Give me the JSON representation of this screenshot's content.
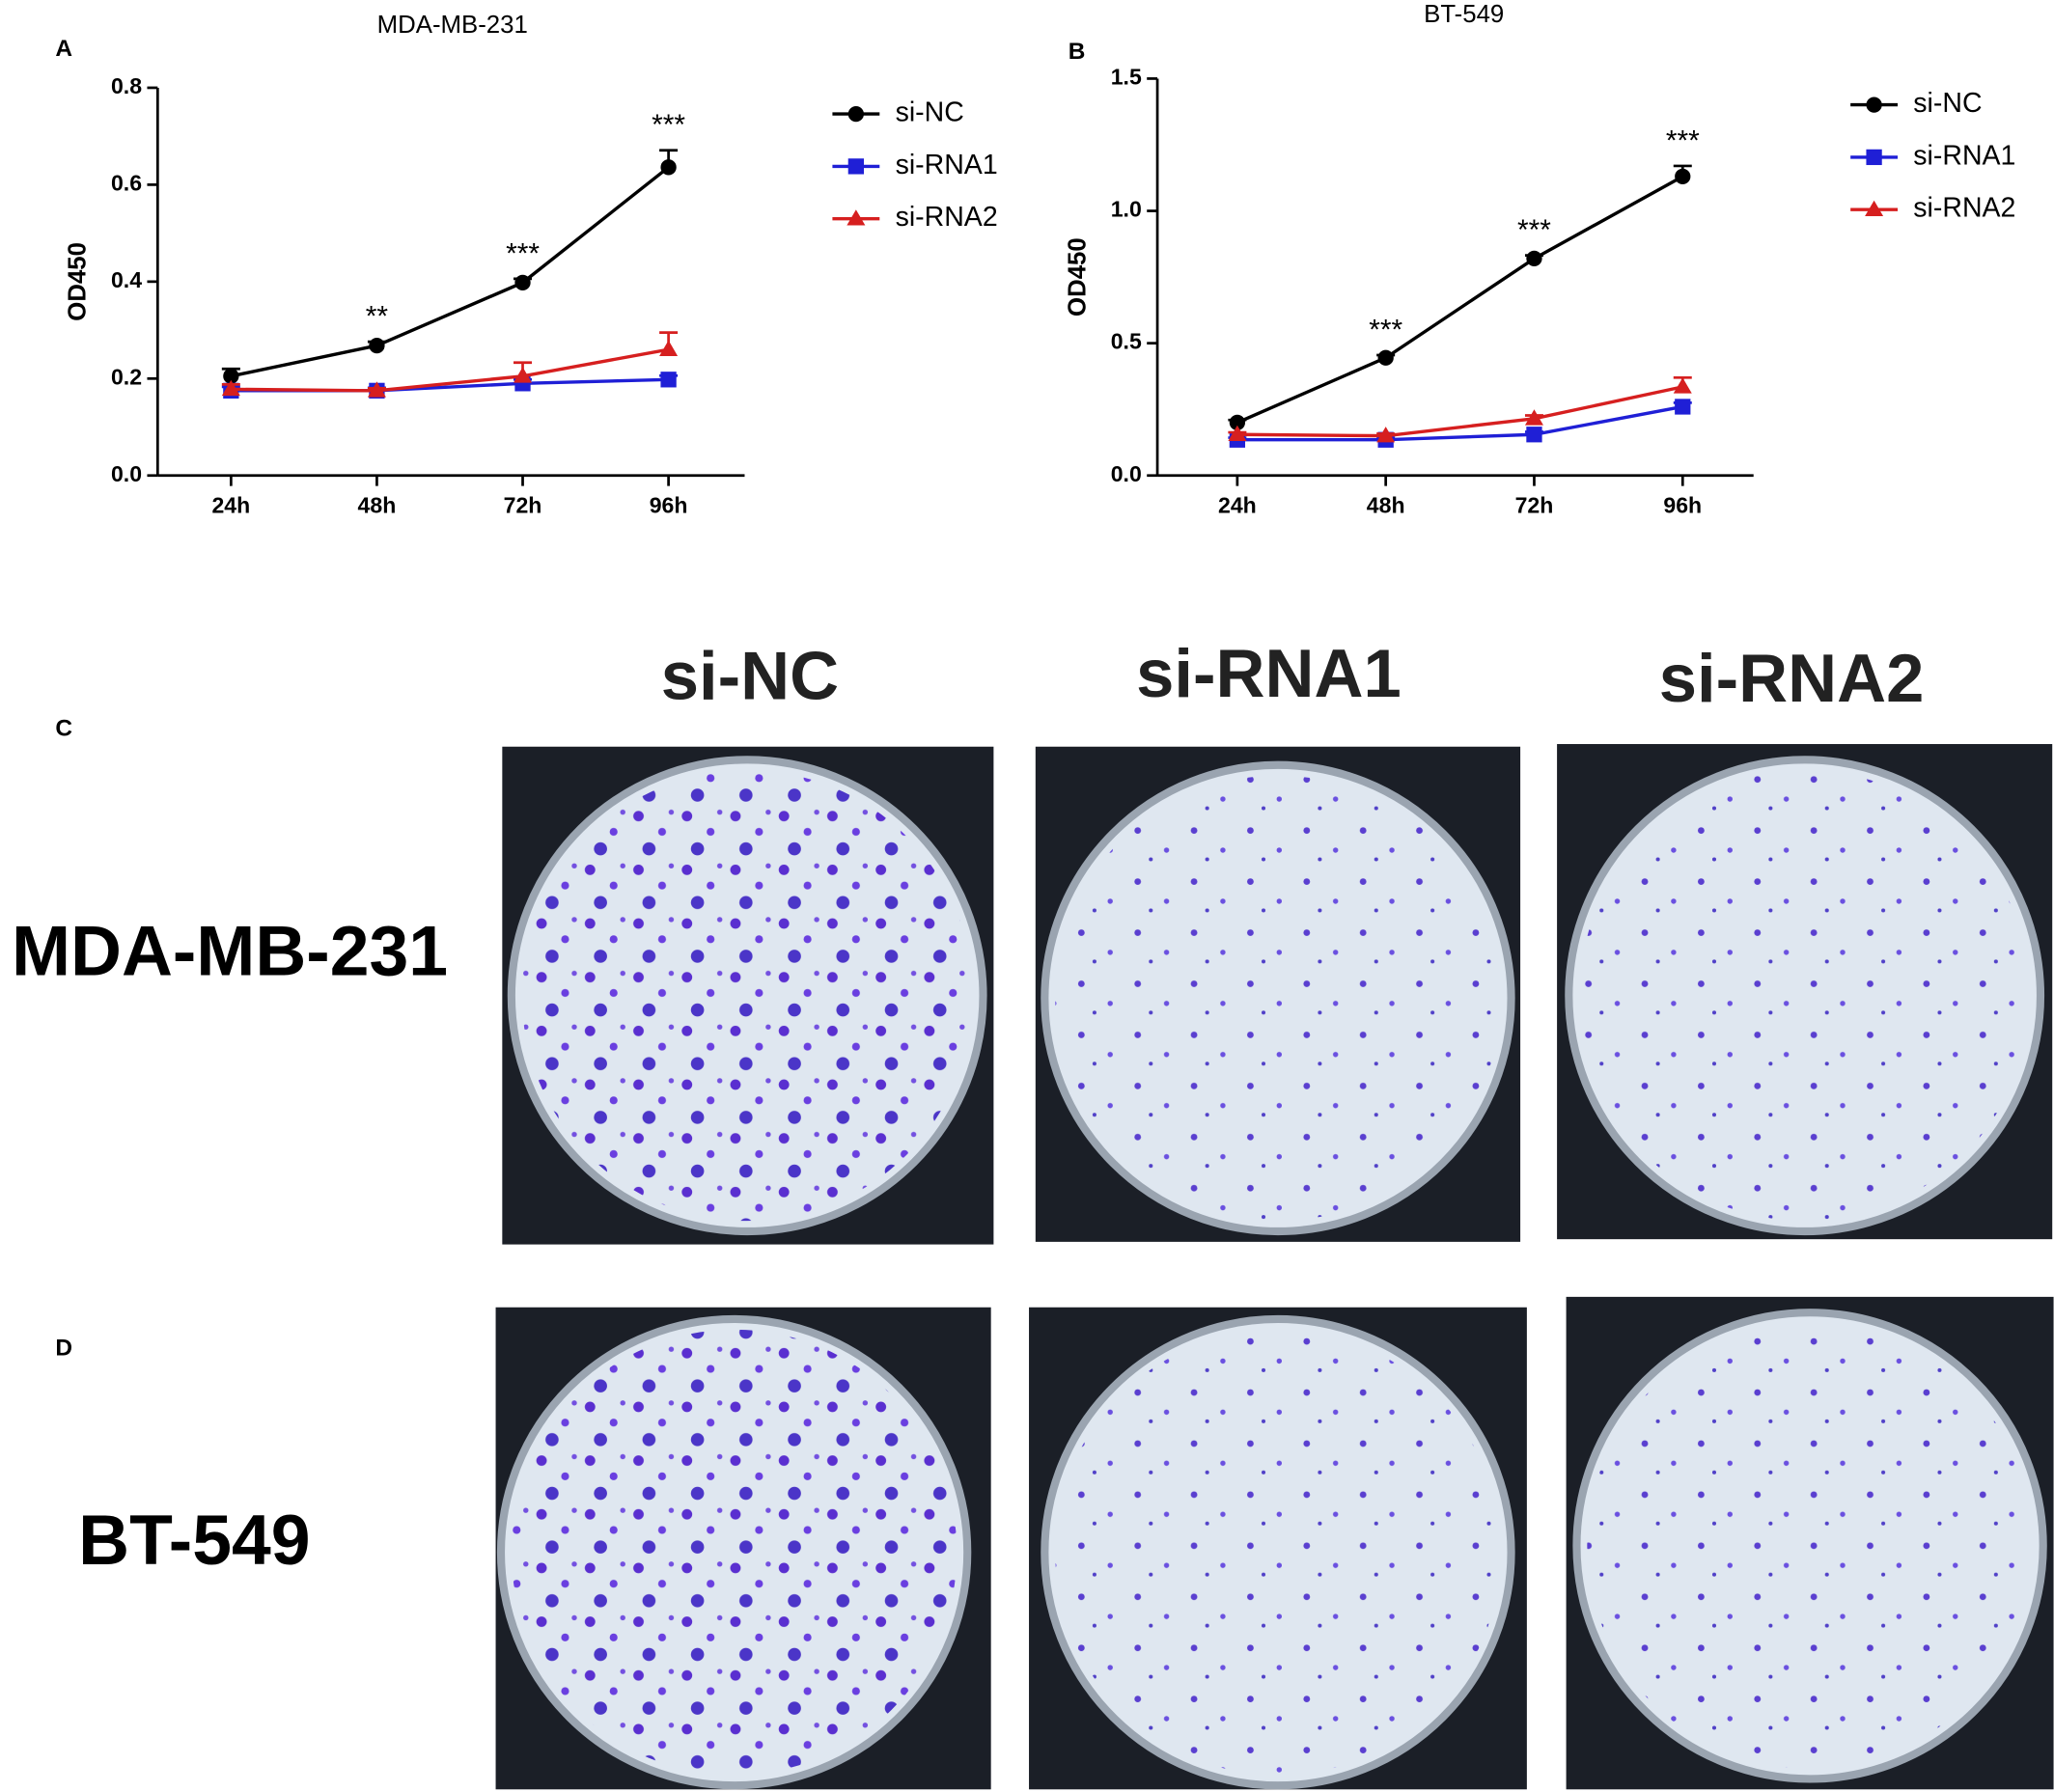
{
  "chart_data": [
    {
      "type": "line",
      "title": "MDA-MB-231",
      "y_label": "OD450",
      "legend": "right",
      "categories": [
        "24h",
        "48h",
        "72h",
        "96h"
      ],
      "ylim": [
        0,
        0.8
      ],
      "yticks": [
        {
          "value": 0,
          "label": "0.0"
        },
        0.2,
        0.4,
        0.6,
        0.8
      ],
      "annotations": [
        null,
        "**",
        "***",
        "***"
      ],
      "series": [
        {
          "name": "si-NC",
          "color": "#000000",
          "marker": "circle",
          "values": [
            0.205,
            0.268,
            0.398,
            0.636
          ],
          "errors": [
            0.015,
            0.008,
            0.008,
            0.035
          ]
        },
        {
          "name": "si-RNA1",
          "color": "#1f1fd6",
          "marker": "square",
          "values": [
            0.175,
            0.175,
            0.19,
            0.198
          ],
          "errors": [
            0.008,
            0.006,
            0.008,
            0.008
          ]
        },
        {
          "name": "si-RNA2",
          "color": "#d61f1f",
          "marker": "triangle",
          "values": [
            0.178,
            0.175,
            0.205,
            0.26
          ],
          "errors": [
            0.01,
            0.005,
            0.028,
            0.035
          ]
        }
      ]
    },
    {
      "type": "line",
      "title": "BT-549",
      "y_label": "OD450",
      "legend": "right",
      "categories": [
        "24h",
        "48h",
        "72h",
        "96h"
      ],
      "ylim": [
        0,
        1.5
      ],
      "yticks": [
        {
          "value": 0,
          "label": "0.0"
        },
        0.5,
        {
          "value": 1,
          "label": "1.0"
        },
        1.5
      ],
      "annotations": [
        null,
        "***",
        "***",
        "***"
      ],
      "series": [
        {
          "name": "si-NC",
          "color": "#000000",
          "marker": "circle",
          "values": [
            0.2,
            0.445,
            0.82,
            1.13
          ],
          "errors": [
            0.01,
            0.01,
            0.012,
            0.04
          ]
        },
        {
          "name": "si-RNA1",
          "color": "#1f1fd6",
          "marker": "square",
          "values": [
            0.135,
            0.135,
            0.155,
            0.26
          ],
          "errors": [
            0.008,
            0.008,
            0.01,
            0.015
          ]
        },
        {
          "name": "si-RNA2",
          "color": "#d61f1f",
          "marker": "triangle",
          "values": [
            0.155,
            0.15,
            0.215,
            0.335
          ],
          "errors": [
            0.008,
            0.008,
            0.012,
            0.035
          ]
        }
      ]
    }
  ],
  "figure": {
    "panel_labels": [
      "A",
      "B",
      "C",
      "D"
    ],
    "columns": [
      "si-NC",
      "si-RNA1",
      "si-RNA2"
    ],
    "rows": [
      "MDA-MB-231",
      "BT-549"
    ]
  }
}
